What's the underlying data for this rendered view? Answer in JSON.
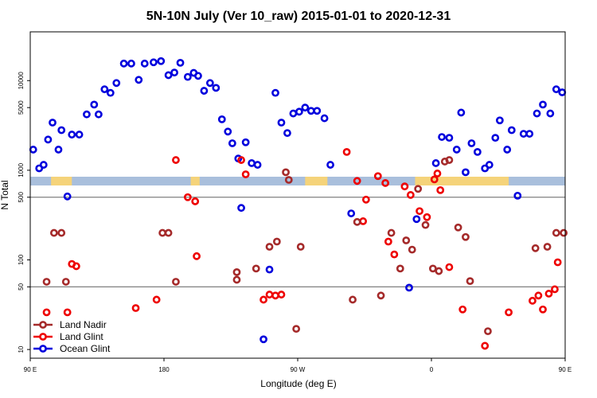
{
  "chart_data": {
    "type": "scatter",
    "title": "5N-10N July (Ver 10_raw)   2015-01-01 to 2020-12-31",
    "xlabel": "Longitude (deg E)",
    "ylabel": "N Total",
    "y_scale": "log",
    "xlim": [
      90,
      450
    ],
    "ylim": [
      8,
      35000
    ],
    "xticks": [
      {
        "value": 90,
        "label": "90 E"
      },
      {
        "value": 180,
        "label": "180"
      },
      {
        "value": 270,
        "label": "90 W"
      },
      {
        "value": 360,
        "label": "0"
      },
      {
        "value": 450,
        "label": "90 E"
      },
      {
        "value": 540,
        "label": "180"
      }
    ],
    "yticks": [
      {
        "value": 10,
        "label": "10"
      },
      {
        "value": 50,
        "label": "50"
      },
      {
        "value": 100,
        "label": "100"
      },
      {
        "value": 500,
        "label": "500"
      },
      {
        "value": 1000,
        "label": "1000"
      },
      {
        "value": 5000,
        "label": "5000"
      },
      {
        "value": 10000,
        "label": "10000"
      }
    ],
    "reference_lines": [
      500,
      50
    ],
    "reference_line_color": "#808080",
    "land_strip_color": "#f5d37a",
    "ocean_strip_color": "#a9bfdc",
    "land_longitudes": [
      [
        104,
        118
      ],
      [
        198,
        204
      ],
      [
        275,
        290
      ],
      [
        349,
        412
      ],
      [
        453,
        466
      ],
      [
        477,
        490
      ],
      [
        510,
        520
      ]
    ],
    "series": [
      {
        "name": "Ocean Glint",
        "color": "#0000dd",
        "points": [
          [
            92,
            1700
          ],
          [
            96,
            1050
          ],
          [
            99,
            1150
          ],
          [
            102,
            2200
          ],
          [
            105,
            3400
          ],
          [
            109,
            1700
          ],
          [
            111,
            2800
          ],
          [
            115,
            510
          ],
          [
            118,
            2500
          ],
          [
            123,
            2500
          ],
          [
            128,
            4200
          ],
          [
            133,
            5400
          ],
          [
            136,
            4200
          ],
          [
            140,
            8000
          ],
          [
            144,
            7300
          ],
          [
            148,
            9400
          ],
          [
            153,
            15500
          ],
          [
            158,
            15500
          ],
          [
            163,
            10200
          ],
          [
            167,
            15500
          ],
          [
            173,
            16000
          ],
          [
            178,
            16500
          ],
          [
            183,
            11500
          ],
          [
            187,
            12300
          ],
          [
            191,
            15800
          ],
          [
            196,
            11000
          ],
          [
            200,
            12200
          ],
          [
            203,
            11300
          ],
          [
            207,
            7700
          ],
          [
            211,
            9400
          ],
          [
            215,
            8300
          ],
          [
            219,
            3700
          ],
          [
            223,
            2700
          ],
          [
            226,
            2000
          ],
          [
            230,
            1350
          ],
          [
            232,
            380
          ],
          [
            235,
            2050
          ],
          [
            239,
            1200
          ],
          [
            243,
            1150
          ],
          [
            247,
            13
          ],
          [
            251,
            78
          ],
          [
            255,
            7300
          ],
          [
            259,
            3400
          ],
          [
            263,
            2600
          ],
          [
            267,
            4300
          ],
          [
            271,
            4500
          ],
          [
            275,
            5000
          ],
          [
            279,
            4600
          ],
          [
            283,
            4600
          ],
          [
            288,
            3800
          ],
          [
            292,
            1150
          ],
          [
            306,
            330
          ],
          [
            345,
            49
          ],
          [
            350,
            285
          ],
          [
            363,
            1200
          ],
          [
            367,
            2350
          ],
          [
            372,
            2300
          ],
          [
            377,
            1700
          ],
          [
            380,
            4400
          ],
          [
            383,
            950
          ],
          [
            387,
            2000
          ],
          [
            391,
            1600
          ],
          [
            396,
            1050
          ],
          [
            399,
            1150
          ],
          [
            403,
            2300
          ],
          [
            406,
            3600
          ],
          [
            411,
            1700
          ],
          [
            414,
            2800
          ],
          [
            418,
            520
          ],
          [
            422,
            2550
          ],
          [
            426,
            2550
          ],
          [
            431,
            4300
          ],
          [
            435,
            5400
          ],
          [
            440,
            4300
          ],
          [
            444,
            8000
          ],
          [
            448,
            7400
          ],
          [
            453,
            9400
          ],
          [
            458,
            15500
          ],
          [
            463,
            15700
          ]
        ]
      },
      {
        "name": "Land Glint",
        "color": "#ee0000",
        "points": [
          [
            101,
            26
          ],
          [
            115,
            26
          ],
          [
            118,
            90
          ],
          [
            121,
            85
          ],
          [
            161,
            29
          ],
          [
            175,
            36
          ],
          [
            188,
            1300
          ],
          [
            196,
            500
          ],
          [
            201,
            450
          ],
          [
            202,
            110
          ],
          [
            232,
            1300
          ],
          [
            235,
            900
          ],
          [
            247,
            36
          ],
          [
            251,
            41
          ],
          [
            255,
            40
          ],
          [
            259,
            41
          ],
          [
            303,
            1600
          ],
          [
            310,
            760
          ],
          [
            314,
            270
          ],
          [
            316,
            470
          ],
          [
            324,
            860
          ],
          [
            329,
            720
          ],
          [
            331,
            160
          ],
          [
            335,
            115
          ],
          [
            342,
            660
          ],
          [
            346,
            530
          ],
          [
            352,
            350
          ],
          [
            357,
            300
          ],
          [
            362,
            790
          ],
          [
            364,
            920
          ],
          [
            366,
            600
          ],
          [
            372,
            83
          ],
          [
            381,
            28
          ],
          [
            396,
            11
          ],
          [
            412,
            26
          ],
          [
            428,
            35
          ],
          [
            432,
            40
          ],
          [
            435,
            28
          ],
          [
            439,
            42
          ],
          [
            443,
            47
          ],
          [
            445,
            94
          ],
          [
            452,
            85
          ],
          [
            459,
            70
          ],
          [
            461,
            88
          ]
        ]
      },
      {
        "name": "Land Nadir",
        "color": "#a52a2a",
        "points": [
          [
            101,
            57
          ],
          [
            106,
            200
          ],
          [
            111,
            200
          ],
          [
            114,
            57
          ],
          [
            179,
            200
          ],
          [
            183,
            200
          ],
          [
            188,
            57
          ],
          [
            229,
            60
          ],
          [
            229,
            73
          ],
          [
            242,
            80
          ],
          [
            251,
            140
          ],
          [
            256,
            160
          ],
          [
            262,
            950
          ],
          [
            264,
            780
          ],
          [
            269,
            17
          ],
          [
            272,
            140
          ],
          [
            307,
            36
          ],
          [
            310,
            265
          ],
          [
            326,
            40
          ],
          [
            333,
            200
          ],
          [
            339,
            80
          ],
          [
            343,
            165
          ],
          [
            347,
            130
          ],
          [
            351,
            620
          ],
          [
            356,
            245
          ],
          [
            361,
            80
          ],
          [
            365,
            75
          ],
          [
            369,
            1250
          ],
          [
            372,
            1300
          ],
          [
            378,
            230
          ],
          [
            383,
            180
          ],
          [
            386,
            58
          ],
          [
            398,
            16
          ],
          [
            430,
            135
          ],
          [
            438,
            140
          ],
          [
            444,
            200
          ],
          [
            449,
            200
          ],
          [
            452,
            57
          ]
        ]
      }
    ],
    "legend": {
      "position": "bottom-left",
      "entries": [
        "Land Nadir",
        "Land Glint",
        "Ocean Glint"
      ],
      "colors": [
        "#a52a2a",
        "#ee0000",
        "#0000dd"
      ]
    }
  }
}
